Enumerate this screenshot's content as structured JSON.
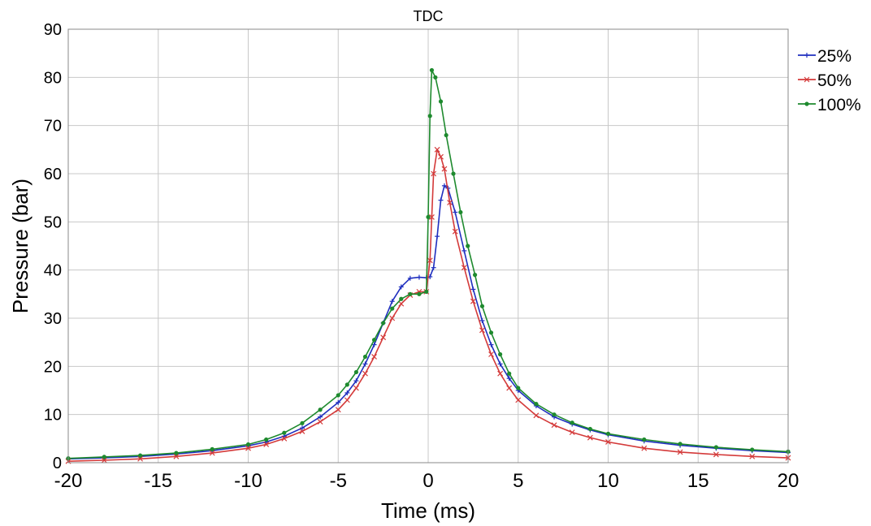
{
  "chart_data": {
    "type": "line",
    "title": "",
    "annotation": "TDC",
    "xlabel": "Time (ms)",
    "ylabel": "Pressure (bar)",
    "xlim": [
      -20,
      20
    ],
    "ylim": [
      0,
      90
    ],
    "xticks": [
      -20,
      -15,
      -10,
      -5,
      0,
      5,
      10,
      15,
      20
    ],
    "yticks": [
      0,
      10,
      20,
      30,
      40,
      50,
      60,
      70,
      80,
      90
    ],
    "xtick_labels": [
      "-20",
      "-15",
      "-10",
      "-5",
      "0",
      "5",
      "10",
      "15",
      "20"
    ],
    "ytick_labels": [
      "0",
      "10",
      "20",
      "30",
      "40",
      "50",
      "60",
      "70",
      "80",
      "90"
    ],
    "grid": true,
    "legend_position": "right-top",
    "series": [
      {
        "name": "25%",
        "color": "#1f2fbf",
        "marker": "plus",
        "x": [
          -20,
          -18,
          -16,
          -14,
          -12,
          -10,
          -9,
          -8,
          -7,
          -6,
          -5,
          -4.5,
          -4,
          -3.5,
          -3,
          -2.5,
          -2,
          -1.5,
          -1,
          -0.5,
          -0.1,
          0.1,
          0.3,
          0.5,
          0.7,
          0.9,
          1.1,
          1.5,
          2,
          2.5,
          3,
          3.5,
          4,
          4.5,
          5,
          6,
          7,
          8,
          9,
          10,
          12,
          14,
          16,
          18,
          20
        ],
        "y": [
          0.8,
          1.0,
          1.3,
          1.8,
          2.5,
          3.5,
          4.3,
          5.5,
          7.2,
          9.5,
          12.5,
          14.5,
          17.0,
          20.5,
          24.5,
          29.0,
          33.5,
          36.5,
          38.3,
          38.5,
          38.4,
          38.6,
          40.5,
          47.0,
          54.5,
          57.5,
          57.0,
          52.0,
          44.0,
          36.0,
          29.5,
          24.5,
          20.5,
          17.5,
          15.0,
          11.8,
          9.5,
          8.0,
          6.8,
          5.8,
          4.5,
          3.6,
          3.0,
          2.5,
          2.1
        ]
      },
      {
        "name": "50%",
        "color": "#d43a3a",
        "marker": "x",
        "x": [
          -20,
          -18,
          -16,
          -14,
          -12,
          -10,
          -9,
          -8,
          -7,
          -6,
          -5,
          -4.5,
          -4,
          -3.5,
          -3,
          -2.5,
          -2,
          -1.5,
          -1,
          -0.5,
          -0.1,
          0.1,
          0.2,
          0.3,
          0.5,
          0.7,
          0.9,
          1.2,
          1.5,
          2,
          2.5,
          3,
          3.5,
          4,
          4.5,
          5,
          6,
          7,
          8,
          9,
          10,
          12,
          14,
          16,
          18,
          20
        ],
        "y": [
          0.3,
          0.5,
          0.8,
          1.3,
          2.0,
          3.0,
          3.8,
          5.0,
          6.5,
          8.5,
          11.0,
          13.0,
          15.5,
          18.5,
          22.0,
          26.0,
          30.0,
          33.0,
          34.8,
          35.5,
          35.5,
          42.0,
          51.0,
          60.0,
          65.0,
          63.5,
          61.0,
          54.0,
          48.0,
          40.5,
          33.5,
          27.5,
          22.5,
          18.5,
          15.5,
          13.0,
          9.8,
          7.8,
          6.3,
          5.2,
          4.3,
          3.0,
          2.2,
          1.7,
          1.3,
          1.0
        ]
      },
      {
        "name": "100%",
        "color": "#1e8a2e",
        "marker": "dot",
        "x": [
          -20,
          -18,
          -16,
          -14,
          -12,
          -10,
          -9,
          -8,
          -7,
          -6,
          -5,
          -4.5,
          -4,
          -3.5,
          -3,
          -2.5,
          -2,
          -1.5,
          -1,
          -0.5,
          -0.1,
          0.0,
          0.1,
          0.2,
          0.4,
          0.7,
          1.0,
          1.4,
          1.8,
          2.2,
          2.6,
          3,
          3.5,
          4,
          4.5,
          5,
          6,
          7,
          8,
          9,
          10,
          12,
          14,
          16,
          18,
          20
        ],
        "y": [
          0.9,
          1.2,
          1.5,
          2.0,
          2.8,
          3.8,
          4.8,
          6.2,
          8.2,
          11.0,
          14.0,
          16.2,
          18.8,
          22.0,
          25.5,
          29.0,
          32.0,
          34.0,
          35.0,
          35.0,
          35.5,
          51.0,
          72.0,
          81.5,
          80.0,
          75.0,
          68.0,
          60.0,
          52.0,
          45.0,
          39.0,
          32.5,
          27.0,
          22.5,
          18.5,
          15.5,
          12.2,
          10.0,
          8.3,
          7.0,
          6.0,
          4.8,
          3.9,
          3.2,
          2.7,
          2.3
        ]
      }
    ]
  }
}
